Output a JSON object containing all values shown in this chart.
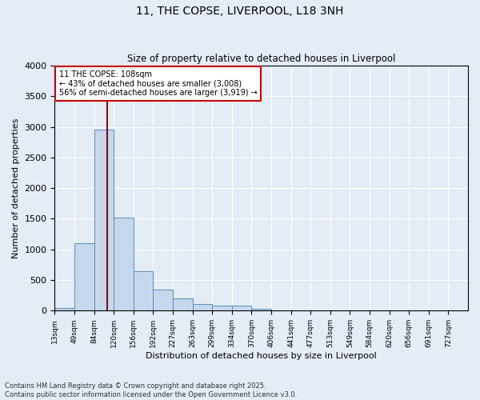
{
  "title": "11, THE COPSE, LIVERPOOL, L18 3NH",
  "subtitle": "Size of property relative to detached houses in Liverpool",
  "xlabel": "Distribution of detached houses by size in Liverpool",
  "ylabel": "Number of detached properties",
  "bar_color": "#c5d8ee",
  "bar_edge_color": "#5b8db8",
  "background_color": "#e4ecf5",
  "grid_color": "#d0dae8",
  "categories": [
    "13sqm",
    "49sqm",
    "84sqm",
    "120sqm",
    "156sqm",
    "192sqm",
    "227sqm",
    "263sqm",
    "299sqm",
    "334sqm",
    "370sqm",
    "406sqm",
    "441sqm",
    "477sqm",
    "513sqm",
    "549sqm",
    "584sqm",
    "620sqm",
    "656sqm",
    "691sqm",
    "727sqm"
  ],
  "values": [
    50,
    1100,
    2950,
    1520,
    650,
    340,
    200,
    110,
    80,
    80,
    30,
    0,
    0,
    0,
    0,
    0,
    0,
    0,
    0,
    0,
    0
  ],
  "property_label": "11 THE COPSE: 108sqm",
  "annotation_line1": "← 43% of detached houses are smaller (3,008)",
  "annotation_line2": "56% of semi-detached houses are larger (3,919) →",
  "red_line_color": "#990000",
  "annotation_box_color": "#ffffff",
  "annotation_box_edge_color": "#cc0000",
  "ylim": [
    0,
    4000
  ],
  "footnote1": "Contains HM Land Registry data © Crown copyright and database right 2025.",
  "footnote2": "Contains public sector information licensed under the Open Government Licence v3.0.",
  "bin_starts": [
    13,
    49,
    84,
    120,
    156,
    192,
    227,
    263,
    299,
    334,
    370,
    406,
    441,
    477,
    513,
    549,
    584,
    620,
    656,
    691,
    727
  ],
  "property_size": 108
}
